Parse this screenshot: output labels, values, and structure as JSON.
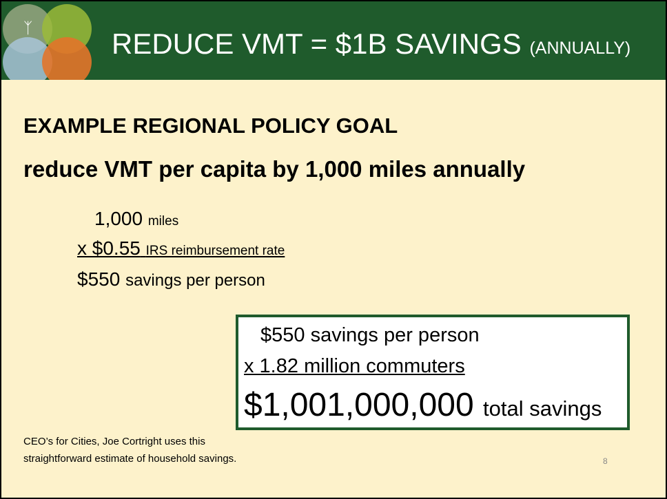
{
  "header": {
    "title": "REDUCE VMT = $1B SAVINGS",
    "subtitle": "(ANNUALLY)"
  },
  "heading": [
    "EXAMPLE REGIONAL POLICY GOAL",
    "reduce VMT per capita by 1,000 miles annually"
  ],
  "calculation": [
    {
      "amount": "1,000",
      "text": "miles"
    },
    {
      "amount": "x $0.55",
      "text": "IRS reimbursement rate"
    },
    {
      "amount": "$550",
      "text": "savings per person"
    }
  ],
  "box": [
    {
      "amount": "$550",
      "text": "savings per person"
    },
    {
      "amount": "x  1.82",
      "text": "million commuters"
    },
    {
      "amount": "$1,001,000,000",
      "text": "total savings"
    }
  ],
  "footnote": [
    "CEO’s for Cities, Joe Cortright uses this",
    "straightforward estimate of household savings."
  ],
  "page_number": "8"
}
